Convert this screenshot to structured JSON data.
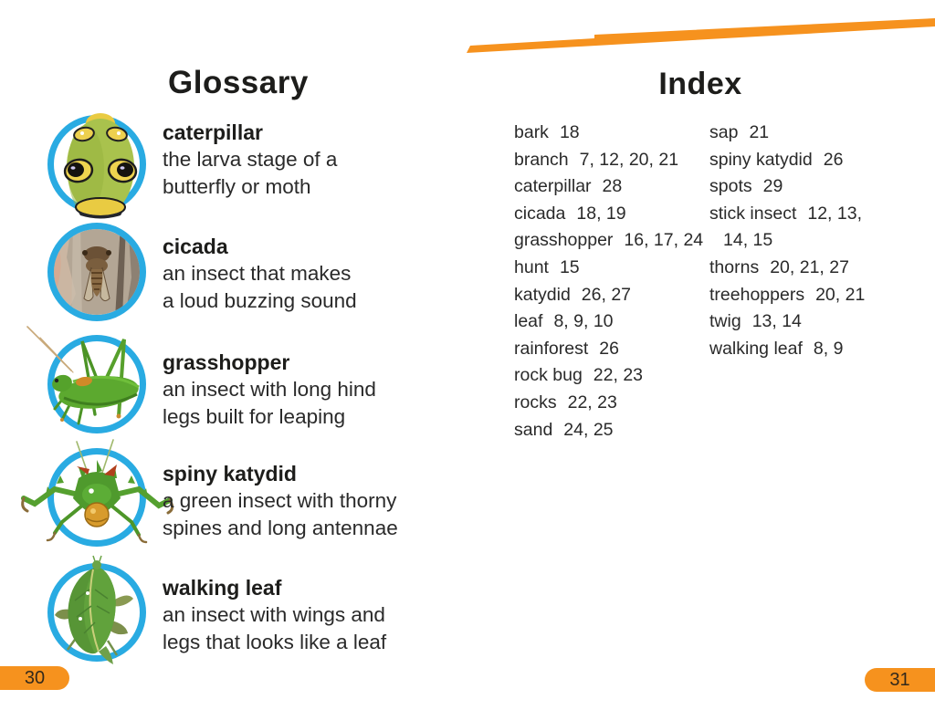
{
  "colors": {
    "accent_orange": "#F6921E",
    "circle_ring_blue": "#29ABE2",
    "text_dark": "#231F20"
  },
  "glossary": {
    "title": "Glossary",
    "page_number": "30",
    "entries": [
      {
        "term": "caterpillar",
        "definition": "the larva stage of a\nbutterfly or moth",
        "icon": "caterpillar-photo"
      },
      {
        "term": "cicada",
        "definition": "an insect that makes\na loud buzzing sound",
        "icon": "cicada-photo"
      },
      {
        "term": "grasshopper",
        "definition": "an insect with long hind\nlegs built for leaping",
        "icon": "grasshopper-photo"
      },
      {
        "term": "spiny katydid",
        "definition": "a green insect with thorny\nspines and long antennae",
        "icon": "spiny-katydid-photo"
      },
      {
        "term": "walking leaf",
        "definition": "an insect with wings and\nlegs that looks like a leaf",
        "icon": "walking-leaf-photo"
      }
    ]
  },
  "index": {
    "title": "Index",
    "page_number": "31",
    "column1": [
      {
        "term": "bark",
        "pages": "18"
      },
      {
        "term": "branch",
        "pages": "7, 12, 20, 21"
      },
      {
        "term": "caterpillar",
        "pages": "28"
      },
      {
        "term": "cicada",
        "pages": "18, 19"
      },
      {
        "term": "grasshopper",
        "pages": "16, 17, 24"
      },
      {
        "term": "hunt",
        "pages": "15"
      },
      {
        "term": "katydid",
        "pages": "26, 27"
      },
      {
        "term": "leaf",
        "pages": "8, 9, 10"
      },
      {
        "term": "rainforest",
        "pages": "26"
      },
      {
        "term": "rock bug",
        "pages": "22, 23"
      },
      {
        "term": "rocks",
        "pages": "22, 23"
      },
      {
        "term": "sand",
        "pages": "24, 25"
      }
    ],
    "column2": [
      {
        "term": "sap",
        "pages": "21"
      },
      {
        "term": "spiny katydid",
        "pages": "26"
      },
      {
        "term": "spots",
        "pages": "29"
      },
      {
        "term": "stick insect",
        "pages": "12, 13,\n14, 15"
      },
      {
        "term": "thorns",
        "pages": "20, 21, 27"
      },
      {
        "term": "treehoppers",
        "pages": "20, 21"
      },
      {
        "term": "twig",
        "pages": "13, 14"
      },
      {
        "term": "walking leaf",
        "pages": "8, 9"
      }
    ]
  }
}
